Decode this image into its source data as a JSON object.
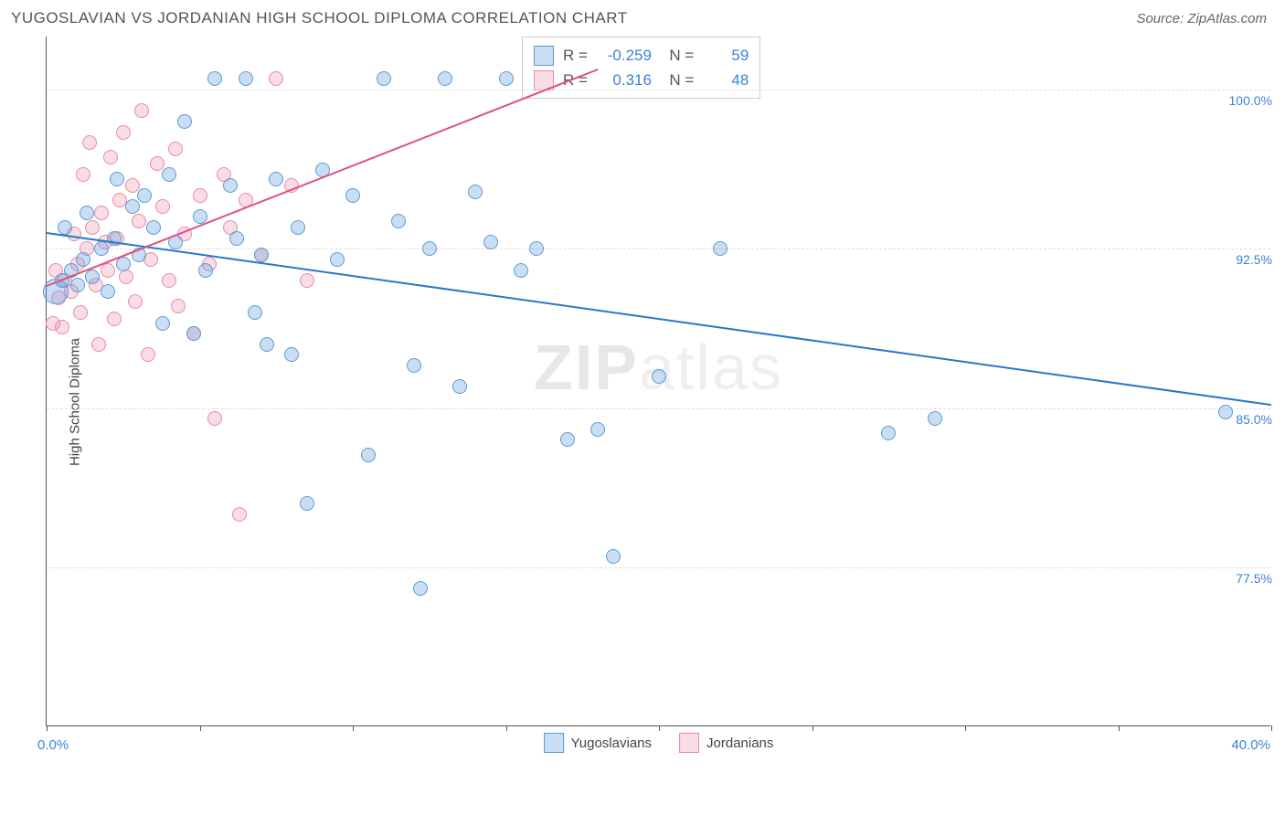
{
  "title": "YUGOSLAVIAN VS JORDANIAN HIGH SCHOOL DIPLOMA CORRELATION CHART",
  "source": "Source: ZipAtlas.com",
  "watermark_bold": "ZIP",
  "watermark_light": "atlas",
  "chart": {
    "type": "scatter",
    "y_axis_label": "High School Diploma",
    "xlim": [
      0,
      40
    ],
    "ylim": [
      70,
      102.5
    ],
    "y_ticks": [
      77.5,
      85.0,
      92.5,
      100.0
    ],
    "y_tick_labels": [
      "77.5%",
      "85.0%",
      "92.5%",
      "100.0%"
    ],
    "x_min_label": "0.0%",
    "x_max_label": "40.0%",
    "x_ticks": [
      0,
      5,
      10,
      15,
      20,
      25,
      30,
      35,
      40
    ],
    "grid_color": "#dddddd",
    "axis_color": "#555555",
    "background_color": "#ffffff",
    "point_radius": 8,
    "series": [
      {
        "name": "Yugoslavians",
        "color_fill": "rgba(100,160,220,0.35)",
        "color_stroke": "#5a9bd5",
        "trend_color": "#2878c8",
        "r": "-0.259",
        "n": "59",
        "trend_start": {
          "x": 0,
          "y": 93.3
        },
        "trend_end": {
          "x": 40,
          "y": 85.2
        },
        "points": [
          {
            "x": 0.3,
            "y": 90.5,
            "r": 14
          },
          {
            "x": 0.5,
            "y": 91.0
          },
          {
            "x": 0.8,
            "y": 91.5
          },
          {
            "x": 1.0,
            "y": 90.8
          },
          {
            "x": 1.2,
            "y": 92.0
          },
          {
            "x": 1.5,
            "y": 91.2
          },
          {
            "x": 1.8,
            "y": 92.5
          },
          {
            "x": 2.0,
            "y": 90.5
          },
          {
            "x": 2.2,
            "y": 93.0
          },
          {
            "x": 2.5,
            "y": 91.8
          },
          {
            "x": 2.8,
            "y": 94.5
          },
          {
            "x": 3.0,
            "y": 92.2
          },
          {
            "x": 3.2,
            "y": 95.0
          },
          {
            "x": 3.5,
            "y": 93.5
          },
          {
            "x": 4.0,
            "y": 96.0
          },
          {
            "x": 4.2,
            "y": 92.8
          },
          {
            "x": 4.5,
            "y": 98.5
          },
          {
            "x": 5.0,
            "y": 94.0
          },
          {
            "x": 5.2,
            "y": 91.5
          },
          {
            "x": 5.5,
            "y": 100.5
          },
          {
            "x": 6.0,
            "y": 95.5
          },
          {
            "x": 6.2,
            "y": 93.0
          },
          {
            "x": 6.5,
            "y": 100.5
          },
          {
            "x": 7.0,
            "y": 92.2
          },
          {
            "x": 7.5,
            "y": 95.8
          },
          {
            "x": 8.0,
            "y": 87.5
          },
          {
            "x": 8.2,
            "y": 93.5
          },
          {
            "x": 8.5,
            "y": 80.5
          },
          {
            "x": 9.0,
            "y": 96.2
          },
          {
            "x": 9.5,
            "y": 92.0
          },
          {
            "x": 10.0,
            "y": 95.0
          },
          {
            "x": 10.5,
            "y": 82.8
          },
          {
            "x": 11.0,
            "y": 100.5
          },
          {
            "x": 11.5,
            "y": 93.8
          },
          {
            "x": 12.0,
            "y": 87.0
          },
          {
            "x": 12.5,
            "y": 92.5
          },
          {
            "x": 12.2,
            "y": 76.5
          },
          {
            "x": 13.0,
            "y": 100.5
          },
          {
            "x": 13.5,
            "y": 86.0
          },
          {
            "x": 14.0,
            "y": 95.2
          },
          {
            "x": 14.5,
            "y": 92.8
          },
          {
            "x": 15.0,
            "y": 100.5
          },
          {
            "x": 15.5,
            "y": 91.5
          },
          {
            "x": 16.0,
            "y": 92.5
          },
          {
            "x": 17.0,
            "y": 83.5
          },
          {
            "x": 18.0,
            "y": 84.0
          },
          {
            "x": 18.5,
            "y": 78.0
          },
          {
            "x": 20.0,
            "y": 86.5
          },
          {
            "x": 22.0,
            "y": 92.5
          },
          {
            "x": 27.5,
            "y": 83.8
          },
          {
            "x": 29.0,
            "y": 84.5
          },
          {
            "x": 38.5,
            "y": 84.8
          },
          {
            "x": 3.8,
            "y": 89.0
          },
          {
            "x": 4.8,
            "y": 88.5
          },
          {
            "x": 6.8,
            "y": 89.5
          },
          {
            "x": 2.3,
            "y": 95.8
          },
          {
            "x": 1.3,
            "y": 94.2
          },
          {
            "x": 0.6,
            "y": 93.5
          },
          {
            "x": 7.2,
            "y": 88.0
          }
        ]
      },
      {
        "name": "Jordanians",
        "color_fill": "rgba(240,140,170,0.3)",
        "color_stroke": "#e88aa8",
        "trend_color": "#e05080",
        "r": "0.316",
        "n": "48",
        "trend_start": {
          "x": 0,
          "y": 90.8
        },
        "trend_end": {
          "x": 18,
          "y": 101.0
        },
        "points": [
          {
            "x": 0.2,
            "y": 89.0
          },
          {
            "x": 0.4,
            "y": 90.2
          },
          {
            "x": 0.6,
            "y": 91.0
          },
          {
            "x": 0.8,
            "y": 90.5
          },
          {
            "x": 1.0,
            "y": 91.8
          },
          {
            "x": 1.1,
            "y": 89.5
          },
          {
            "x": 1.3,
            "y": 92.5
          },
          {
            "x": 1.5,
            "y": 93.5
          },
          {
            "x": 1.6,
            "y": 90.8
          },
          {
            "x": 1.8,
            "y": 94.2
          },
          {
            "x": 2.0,
            "y": 91.5
          },
          {
            "x": 2.1,
            "y": 96.8
          },
          {
            "x": 2.3,
            "y": 93.0
          },
          {
            "x": 2.5,
            "y": 98.0
          },
          {
            "x": 2.6,
            "y": 91.2
          },
          {
            "x": 2.8,
            "y": 95.5
          },
          {
            "x": 3.0,
            "y": 93.8
          },
          {
            "x": 3.1,
            "y": 99.0
          },
          {
            "x": 3.4,
            "y": 92.0
          },
          {
            "x": 3.6,
            "y": 96.5
          },
          {
            "x": 3.8,
            "y": 94.5
          },
          {
            "x": 4.0,
            "y": 91.0
          },
          {
            "x": 4.2,
            "y": 97.2
          },
          {
            "x": 4.5,
            "y": 93.2
          },
          {
            "x": 4.8,
            "y": 88.5
          },
          {
            "x": 5.0,
            "y": 95.0
          },
          {
            "x": 5.3,
            "y": 91.8
          },
          {
            "x": 5.5,
            "y": 84.5
          },
          {
            "x": 5.8,
            "y": 96.0
          },
          {
            "x": 6.0,
            "y": 93.5
          },
          {
            "x": 6.3,
            "y": 80.0
          },
          {
            "x": 6.5,
            "y": 94.8
          },
          {
            "x": 7.0,
            "y": 92.2
          },
          {
            "x": 7.5,
            "y": 100.5
          },
          {
            "x": 8.0,
            "y": 95.5
          },
          {
            "x": 8.5,
            "y": 91.0
          },
          {
            "x": 0.3,
            "y": 91.5
          },
          {
            "x": 0.5,
            "y": 88.8
          },
          {
            "x": 1.2,
            "y": 96.0
          },
          {
            "x": 1.7,
            "y": 88.0
          },
          {
            "x": 2.2,
            "y": 89.2
          },
          {
            "x": 2.9,
            "y": 90.0
          },
          {
            "x": 3.3,
            "y": 87.5
          },
          {
            "x": 4.3,
            "y": 89.8
          },
          {
            "x": 1.4,
            "y": 97.5
          },
          {
            "x": 2.4,
            "y": 94.8
          },
          {
            "x": 1.9,
            "y": 92.8
          },
          {
            "x": 0.9,
            "y": 93.2
          }
        ]
      }
    ],
    "legend_series1_label": "Yugoslavians",
    "legend_series2_label": "Jordanians"
  }
}
